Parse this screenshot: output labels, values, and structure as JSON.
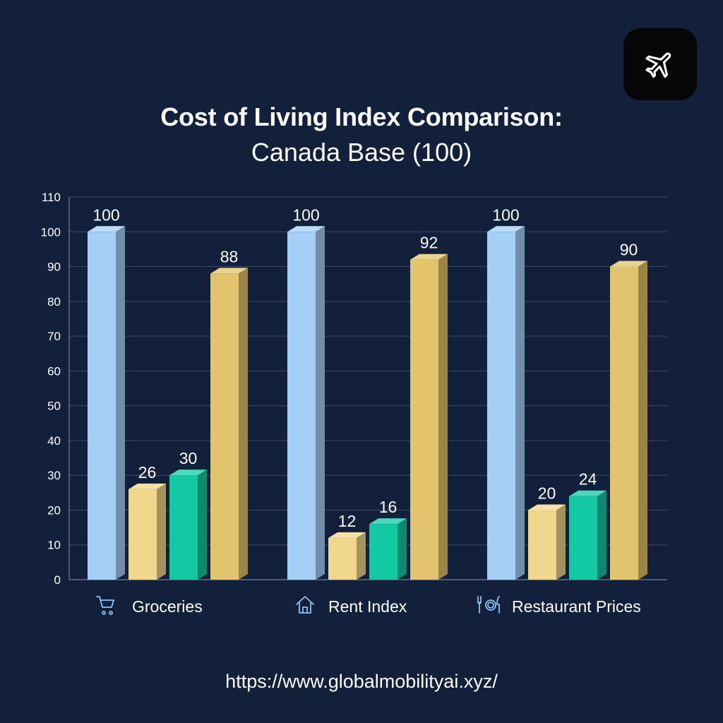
{
  "header": {
    "title": "Cost of Living Index Comparison:",
    "subtitle": "Canada Base (100)",
    "logo_icon": "airplane-icon"
  },
  "chart_data": {
    "type": "bar",
    "title": "Cost of Living Index Comparison:",
    "subtitle": "Canada Base (100)",
    "xlabel": "",
    "ylabel": "",
    "ylim": [
      0,
      110
    ],
    "yticks": [
      0,
      10,
      20,
      30,
      40,
      50,
      60,
      70,
      80,
      90,
      100,
      110
    ],
    "grid": true,
    "legend": "none",
    "categories": [
      "Groceries",
      "Rent Index",
      "Restaurant Prices"
    ],
    "category_icons": [
      "shopping-cart-icon",
      "house-icon",
      "fork-plate-knife-icon"
    ],
    "series": [
      {
        "values": [
          100,
          100,
          100
        ],
        "color": "#a6cff5"
      },
      {
        "values": [
          26,
          12,
          20
        ],
        "color": "#f1d78c"
      },
      {
        "values": [
          30,
          16,
          24
        ],
        "color": "#13c9a4"
      },
      {
        "values": [
          88,
          92,
          90
        ],
        "color": "#e2c46c"
      }
    ]
  },
  "footer": {
    "url": "https://www.globalmobilityai.xyz/"
  }
}
